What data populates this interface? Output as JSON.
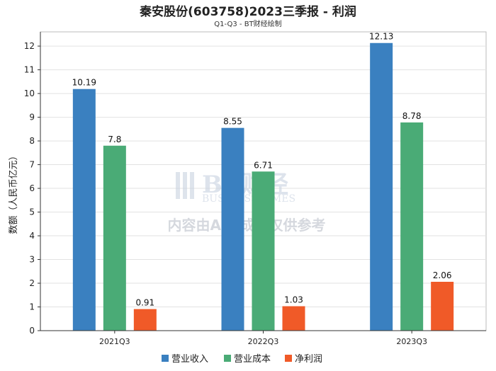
{
  "chart_data": {
    "type": "bar",
    "title": "秦安股份(603758)2023三季报 - 利润",
    "subtitle": "Q1-Q3 - BT财经绘制",
    "ylabel": "数额（人民币亿元）",
    "xlabel": "",
    "categories": [
      "2021Q3",
      "2022Q3",
      "2023Q3"
    ],
    "series": [
      {
        "name": "营业收入",
        "color": "#3a80c0",
        "values": [
          10.19,
          8.55,
          12.13
        ],
        "labels": [
          "10.19",
          "8.55",
          "12.13"
        ]
      },
      {
        "name": "营业成本",
        "color": "#4aab76",
        "values": [
          7.8,
          6.71,
          8.78
        ],
        "labels": [
          "7.8",
          "6.71",
          "8.78"
        ]
      },
      {
        "name": "净利润",
        "color": "#f05a28",
        "values": [
          0.91,
          1.03,
          2.06
        ],
        "labels": [
          "0.91",
          "1.03",
          "2.06"
        ]
      }
    ],
    "ylim": [
      0,
      12.6
    ],
    "yticks": [
      0,
      1,
      2,
      3,
      4,
      5,
      6,
      7,
      8,
      9,
      10,
      11,
      12
    ],
    "grid": true,
    "legend_position": "bottom"
  },
  "watermark": {
    "brand": "BT财经",
    "brand_sub": "BUSINESS TIMES",
    "notice": "内容由AI生成，仅供参考"
  }
}
